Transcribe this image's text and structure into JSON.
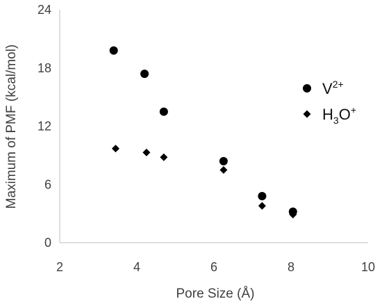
{
  "chart_data": {
    "type": "scatter",
    "title": "",
    "xlabel": "Pore Size (Å)",
    "ylabel": "Maximum of PMF (kcal/mol)",
    "xlim": [
      2,
      10
    ],
    "ylim": [
      0,
      24
    ],
    "xticks": [
      2,
      4,
      6,
      8,
      10
    ],
    "yticks": [
      0,
      6,
      12,
      18,
      24
    ],
    "grid": false,
    "legend_position": "right",
    "series": [
      {
        "name": "V2+",
        "legend": {
          "base": "V",
          "sup": "2+"
        },
        "marker": "circle",
        "color": "#000000",
        "points": [
          {
            "x": 3.4,
            "y": 19.8
          },
          {
            "x": 4.2,
            "y": 17.4
          },
          {
            "x": 4.7,
            "y": 13.5
          },
          {
            "x": 6.25,
            "y": 8.4
          },
          {
            "x": 7.25,
            "y": 4.8
          },
          {
            "x": 8.05,
            "y": 3.2
          }
        ]
      },
      {
        "name": "H3O+",
        "legend": {
          "base": "H",
          "sub": "3",
          "base2": "O",
          "sup": "+"
        },
        "marker": "diamond",
        "color": "#000000",
        "points": [
          {
            "x": 3.45,
            "y": 9.7
          },
          {
            "x": 4.25,
            "y": 9.3
          },
          {
            "x": 4.7,
            "y": 8.8
          },
          {
            "x": 6.25,
            "y": 7.5
          },
          {
            "x": 7.25,
            "y": 3.8
          },
          {
            "x": 8.05,
            "y": 2.9
          }
        ]
      }
    ]
  }
}
